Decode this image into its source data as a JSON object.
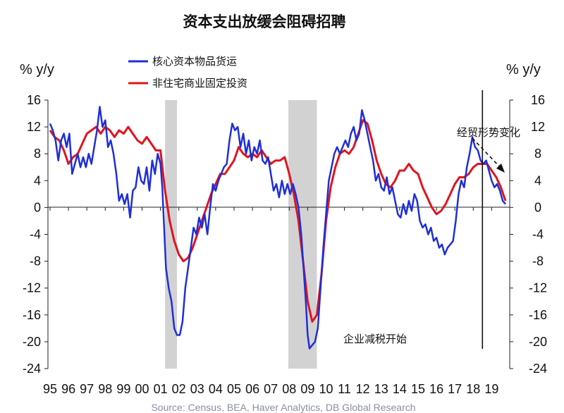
{
  "chart_data": {
    "type": "line",
    "title": "资本支出放缓会阻碍招聘",
    "ylabel_left": "% y/y",
    "ylabel_right": "% y/y",
    "ylim": [
      -24,
      16
    ],
    "yticks": [
      "16",
      "12",
      "8",
      "4",
      "0",
      "-4",
      "-8",
      "-12",
      "-16",
      "-20",
      "-24"
    ],
    "yticks_right": [
      "16",
      "12",
      "8",
      "4",
      "0",
      "-4",
      "-8",
      "-12",
      "-16",
      "-20",
      "-24"
    ],
    "xlim": [
      1995,
      2020
    ],
    "xticks": [
      "95",
      "96",
      "97",
      "98",
      "99",
      "00",
      "01",
      "02",
      "03",
      "04",
      "05",
      "06",
      "07",
      "08",
      "09",
      "10",
      "11",
      "12",
      "13",
      "14",
      "15",
      "16",
      "17",
      "18",
      "19"
    ],
    "recessions": [
      [
        2001.25,
        2001.9
      ],
      [
        2007.95,
        2009.5
      ]
    ],
    "grid": false,
    "legend_position": "top-left",
    "series": [
      {
        "name": "核心资本物品货运",
        "color": "#1f2fd6",
        "points": [
          [
            1995.0,
            12.5
          ],
          [
            1995.15,
            11.5
          ],
          [
            1995.3,
            10.0
          ],
          [
            1995.45,
            7.0
          ],
          [
            1995.6,
            10.0
          ],
          [
            1995.75,
            11.0
          ],
          [
            1995.9,
            9.0
          ],
          [
            1996.05,
            11.0
          ],
          [
            1996.2,
            5.0
          ],
          [
            1996.35,
            6.5
          ],
          [
            1996.5,
            8.0
          ],
          [
            1996.65,
            6.0
          ],
          [
            1996.8,
            7.5
          ],
          [
            1996.95,
            6.0
          ],
          [
            1997.1,
            8.0
          ],
          [
            1997.25,
            6.5
          ],
          [
            1997.4,
            9.0
          ],
          [
            1997.55,
            11.5
          ],
          [
            1997.7,
            15.0
          ],
          [
            1997.85,
            12.0
          ],
          [
            1998.0,
            13.0
          ],
          [
            1998.15,
            9.0
          ],
          [
            1998.3,
            10.0
          ],
          [
            1998.45,
            8.0
          ],
          [
            1998.6,
            5.0
          ],
          [
            1998.75,
            1.0
          ],
          [
            1998.9,
            2.0
          ],
          [
            1999.05,
            0.5
          ],
          [
            1999.2,
            2.0
          ],
          [
            1999.35,
            -1.5
          ],
          [
            1999.5,
            2.5
          ],
          [
            1999.65,
            3.0
          ],
          [
            1999.8,
            6.0
          ],
          [
            1999.95,
            4.0
          ],
          [
            2000.1,
            3.5
          ],
          [
            2000.25,
            6.0
          ],
          [
            2000.4,
            2.5
          ],
          [
            2000.55,
            7.0
          ],
          [
            2000.7,
            5.0
          ],
          [
            2000.85,
            8.0
          ],
          [
            2001.0,
            6.5
          ],
          [
            2001.1,
            3.0
          ],
          [
            2001.2,
            -3.0
          ],
          [
            2001.3,
            -9.0
          ],
          [
            2001.45,
            -12.0
          ],
          [
            2001.6,
            -14.0
          ],
          [
            2001.75,
            -18.0
          ],
          [
            2001.9,
            -19.0
          ],
          [
            2002.05,
            -19.0
          ],
          [
            2002.2,
            -17.0
          ],
          [
            2002.35,
            -12.0
          ],
          [
            2002.5,
            -9.0
          ],
          [
            2002.65,
            -6.0
          ],
          [
            2002.8,
            -3.0
          ],
          [
            2002.95,
            -4.0
          ],
          [
            2003.1,
            -1.5
          ],
          [
            2003.25,
            -3.0
          ],
          [
            2003.4,
            -1.0
          ],
          [
            2003.55,
            -4.0
          ],
          [
            2003.7,
            0.0
          ],
          [
            2003.85,
            3.5
          ],
          [
            2004.0,
            2.5
          ],
          [
            2004.15,
            4.0
          ],
          [
            2004.3,
            5.0
          ],
          [
            2004.45,
            6.0
          ],
          [
            2004.6,
            6.5
          ],
          [
            2004.75,
            10.0
          ],
          [
            2004.9,
            12.5
          ],
          [
            2005.05,
            11.5
          ],
          [
            2005.2,
            12.0
          ],
          [
            2005.35,
            9.0
          ],
          [
            2005.5,
            11.0
          ],
          [
            2005.65,
            8.0
          ],
          [
            2005.8,
            10.0
          ],
          [
            2005.95,
            7.0
          ],
          [
            2006.1,
            9.0
          ],
          [
            2006.25,
            8.0
          ],
          [
            2006.4,
            10.0
          ],
          [
            2006.55,
            7.0
          ],
          [
            2006.7,
            6.5
          ],
          [
            2006.85,
            7.5
          ],
          [
            2007.0,
            5.0
          ],
          [
            2007.15,
            2.5
          ],
          [
            2007.3,
            3.5
          ],
          [
            2007.45,
            1.5
          ],
          [
            2007.6,
            4.0
          ],
          [
            2007.75,
            2.0
          ],
          [
            2007.9,
            3.5
          ],
          [
            2008.05,
            2.0
          ],
          [
            2008.2,
            3.5
          ],
          [
            2008.35,
            2.0
          ],
          [
            2008.5,
            0.0
          ],
          [
            2008.65,
            -4.0
          ],
          [
            2008.8,
            -10.0
          ],
          [
            2008.9,
            -14.0
          ],
          [
            2009.0,
            -19.0
          ],
          [
            2009.1,
            -21.0
          ],
          [
            2009.25,
            -20.5
          ],
          [
            2009.4,
            -20.0
          ],
          [
            2009.55,
            -18.0
          ],
          [
            2009.7,
            -12.0
          ],
          [
            2009.85,
            -6.0
          ],
          [
            2010.0,
            -1.0
          ],
          [
            2010.15,
            4.0
          ],
          [
            2010.3,
            6.0
          ],
          [
            2010.45,
            8.0
          ],
          [
            2010.6,
            9.0
          ],
          [
            2010.75,
            8.0
          ],
          [
            2010.9,
            9.0
          ],
          [
            2011.05,
            10.0
          ],
          [
            2011.2,
            9.0
          ],
          [
            2011.35,
            11.0
          ],
          [
            2011.5,
            12.0
          ],
          [
            2011.65,
            10.0
          ],
          [
            2011.8,
            11.0
          ],
          [
            2011.95,
            14.5
          ],
          [
            2012.1,
            13.0
          ],
          [
            2012.25,
            11.0
          ],
          [
            2012.4,
            9.0
          ],
          [
            2012.55,
            7.0
          ],
          [
            2012.7,
            4.0
          ],
          [
            2012.85,
            5.0
          ],
          [
            2013.0,
            3.0
          ],
          [
            2013.15,
            2.5
          ],
          [
            2013.3,
            4.5
          ],
          [
            2013.45,
            2.0
          ],
          [
            2013.6,
            3.0
          ],
          [
            2013.75,
            1.0
          ],
          [
            2013.9,
            -1.0
          ],
          [
            2014.05,
            -1.5
          ],
          [
            2014.2,
            0.5
          ],
          [
            2014.35,
            -1.0
          ],
          [
            2014.5,
            1.0
          ],
          [
            2014.65,
            -0.5
          ],
          [
            2014.8,
            2.0
          ],
          [
            2014.95,
            1.0
          ],
          [
            2015.1,
            -2.0
          ],
          [
            2015.25,
            -3.0
          ],
          [
            2015.4,
            -2.5
          ],
          [
            2015.55,
            -4.0
          ],
          [
            2015.7,
            -3.0
          ],
          [
            2015.85,
            -5.0
          ],
          [
            2016.0,
            -4.5
          ],
          [
            2016.15,
            -6.0
          ],
          [
            2016.3,
            -5.5
          ],
          [
            2016.45,
            -7.0
          ],
          [
            2016.6,
            -6.0
          ],
          [
            2016.75,
            -5.5
          ],
          [
            2016.9,
            -5.0
          ],
          [
            2017.05,
            -2.0
          ],
          [
            2017.2,
            2.0
          ],
          [
            2017.35,
            4.0
          ],
          [
            2017.5,
            3.0
          ],
          [
            2017.65,
            6.0
          ],
          [
            2017.8,
            8.0
          ],
          [
            2017.95,
            10.5
          ],
          [
            2018.1,
            9.0
          ],
          [
            2018.25,
            8.5
          ],
          [
            2018.4,
            7.0
          ],
          [
            2018.55,
            6.5
          ],
          [
            2018.7,
            7.0
          ],
          [
            2018.85,
            5.5
          ],
          [
            2019.0,
            4.0
          ],
          [
            2019.15,
            3.0
          ],
          [
            2019.3,
            3.5
          ],
          [
            2019.45,
            2.5
          ],
          [
            2019.6,
            1.0
          ],
          [
            2019.75,
            0.5
          ]
        ]
      },
      {
        "name": "非住宅商业固定投资",
        "color": "#e0141e",
        "points": [
          [
            1995.0,
            11.5
          ],
          [
            1995.25,
            10.5
          ],
          [
            1995.5,
            10.0
          ],
          [
            1995.75,
            8.5
          ],
          [
            1996.0,
            6.5
          ],
          [
            1996.25,
            7.5
          ],
          [
            1996.5,
            8.0
          ],
          [
            1996.75,
            9.5
          ],
          [
            1997.0,
            11.0
          ],
          [
            1997.25,
            11.5
          ],
          [
            1997.5,
            12.0
          ],
          [
            1997.75,
            11.0
          ],
          [
            1998.0,
            12.0
          ],
          [
            1998.25,
            11.5
          ],
          [
            1998.5,
            10.5
          ],
          [
            1998.75,
            11.5
          ],
          [
            1999.0,
            11.0
          ],
          [
            1999.25,
            12.0
          ],
          [
            1999.5,
            11.0
          ],
          [
            1999.75,
            10.0
          ],
          [
            2000.0,
            9.5
          ],
          [
            2000.25,
            10.5
          ],
          [
            2000.5,
            9.5
          ],
          [
            2000.75,
            8.5
          ],
          [
            2001.0,
            8.5
          ],
          [
            2001.25,
            2.5
          ],
          [
            2001.5,
            -2.0
          ],
          [
            2001.75,
            -5.0
          ],
          [
            2002.0,
            -7.0
          ],
          [
            2002.25,
            -8.0
          ],
          [
            2002.5,
            -7.5
          ],
          [
            2002.75,
            -6.0
          ],
          [
            2003.0,
            -4.0
          ],
          [
            2003.25,
            -2.0
          ],
          [
            2003.5,
            0.0
          ],
          [
            2003.75,
            2.0
          ],
          [
            2004.0,
            3.5
          ],
          [
            2004.25,
            5.0
          ],
          [
            2004.5,
            5.0
          ],
          [
            2004.75,
            6.0
          ],
          [
            2005.0,
            7.0
          ],
          [
            2005.25,
            9.0
          ],
          [
            2005.5,
            8.0
          ],
          [
            2005.75,
            7.5
          ],
          [
            2006.0,
            8.0
          ],
          [
            2006.25,
            7.5
          ],
          [
            2006.5,
            8.5
          ],
          [
            2006.75,
            7.5
          ],
          [
            2007.0,
            6.5
          ],
          [
            2007.25,
            7.0
          ],
          [
            2007.5,
            7.0
          ],
          [
            2007.75,
            7.5
          ],
          [
            2008.0,
            5.0
          ],
          [
            2008.25,
            2.0
          ],
          [
            2008.5,
            -2.0
          ],
          [
            2008.75,
            -8.0
          ],
          [
            2009.0,
            -14.0
          ],
          [
            2009.25,
            -17.0
          ],
          [
            2009.5,
            -16.0
          ],
          [
            2009.75,
            -10.0
          ],
          [
            2010.0,
            -2.0
          ],
          [
            2010.25,
            3.0
          ],
          [
            2010.5,
            6.0
          ],
          [
            2010.75,
            8.0
          ],
          [
            2011.0,
            8.5
          ],
          [
            2011.25,
            8.0
          ],
          [
            2011.5,
            9.0
          ],
          [
            2011.75,
            11.0
          ],
          [
            2012.0,
            13.0
          ],
          [
            2012.25,
            12.5
          ],
          [
            2012.5,
            10.0
          ],
          [
            2012.75,
            7.0
          ],
          [
            2013.0,
            5.0
          ],
          [
            2013.25,
            3.5
          ],
          [
            2013.5,
            3.0
          ],
          [
            2013.75,
            4.0
          ],
          [
            2014.0,
            5.5
          ],
          [
            2014.25,
            5.5
          ],
          [
            2014.5,
            6.5
          ],
          [
            2014.75,
            5.5
          ],
          [
            2015.0,
            5.0
          ],
          [
            2015.25,
            3.0
          ],
          [
            2015.5,
            1.5
          ],
          [
            2015.75,
            0.0
          ],
          [
            2016.0,
            -1.0
          ],
          [
            2016.25,
            -0.5
          ],
          [
            2016.5,
            0.5
          ],
          [
            2016.75,
            2.0
          ],
          [
            2017.0,
            3.5
          ],
          [
            2017.25,
            4.5
          ],
          [
            2017.5,
            4.5
          ],
          [
            2017.75,
            5.0
          ],
          [
            2018.0,
            6.0
          ],
          [
            2018.25,
            6.5
          ],
          [
            2018.5,
            6.5
          ],
          [
            2018.75,
            6.5
          ],
          [
            2019.0,
            5.5
          ],
          [
            2019.25,
            4.5
          ],
          [
            2019.5,
            3.0
          ],
          [
            2019.75,
            1.0
          ]
        ]
      }
    ],
    "annotations": {
      "right_label": "经贸形势变化",
      "bottom_label": "企业减税开始"
    },
    "vertical_marker_x": 2018.0,
    "source": "Source: Census, BEA, Haver Analytics, DB Global Research"
  }
}
